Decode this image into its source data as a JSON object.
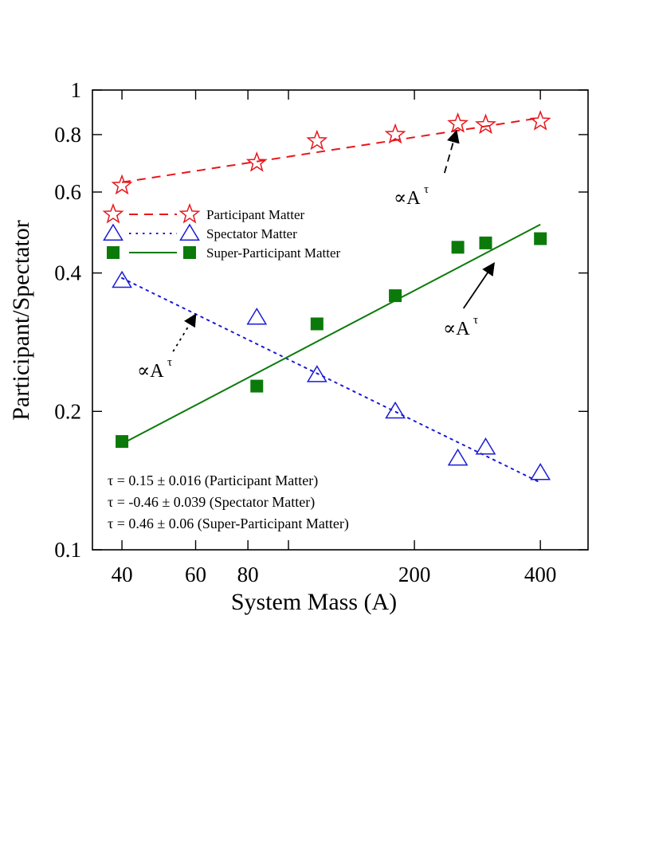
{
  "chart_data": {
    "type": "scatter",
    "xlabel": "System Mass (A)",
    "ylabel": "Participant/Spectator",
    "xscale": "log",
    "yscale": "log",
    "xlim": [
      34,
      520
    ],
    "ylim": [
      0.1,
      1
    ],
    "xticks": [
      40,
      60,
      80,
      200,
      400
    ],
    "xtick_labels": [
      "40",
      "60",
      "80",
      "200",
      "400"
    ],
    "x_minor_ticks": [
      100
    ],
    "yticks": [
      0.1,
      0.2,
      0.4,
      0.6,
      0.8,
      1
    ],
    "ytick_labels": [
      "0.1",
      "0.2",
      "0.4",
      "0.6",
      "0.8",
      "1"
    ],
    "grid": false,
    "legend_position": "upper-left",
    "series": [
      {
        "name": "Participant Matter",
        "marker": "star",
        "line": "dashed",
        "color": "#e8161b",
        "x": [
          40,
          84,
          117,
          180,
          254,
          296,
          400
        ],
        "y": [
          0.62,
          0.695,
          0.775,
          0.8,
          0.845,
          0.84,
          0.855
        ],
        "fit": {
          "x": [
            40,
            400
          ],
          "y": [
            0.63,
            0.87
          ]
        }
      },
      {
        "name": "Spectator Matter",
        "marker": "triangle",
        "line": "dotted",
        "color": "#1b1bd8",
        "x": [
          40,
          84,
          117,
          180,
          254,
          296,
          400
        ],
        "y": [
          0.385,
          0.32,
          0.24,
          0.2,
          0.158,
          0.167,
          0.147
        ],
        "fit": {
          "x": [
            40,
            400
          ],
          "y": [
            0.39,
            0.14
          ]
        }
      },
      {
        "name": "Super-Participant Matter",
        "marker": "square",
        "line": "solid",
        "color": "#0b7a0b",
        "x": [
          40,
          84,
          117,
          180,
          254,
          296,
          400
        ],
        "y": [
          0.172,
          0.227,
          0.31,
          0.357,
          0.455,
          0.465,
          0.475
        ],
        "fit": {
          "x": [
            40,
            400
          ],
          "y": [
            0.17,
            0.51
          ]
        }
      }
    ],
    "annotations": [
      {
        "series": 0,
        "text": "∝A",
        "sup": "τ",
        "text_x": 60,
        "text_y": 0.56,
        "arrow_from": [
          236,
          0.66
        ],
        "arrow_to": [
          252,
          0.815
        ]
      },
      {
        "series": 2,
        "text": "∝A",
        "sup": "τ",
        "text_x": 60,
        "text_y": 0.3,
        "arrow_from": [
          262,
          0.335
        ],
        "arrow_to": [
          310,
          0.42
        ]
      },
      {
        "series": 1,
        "text": "∝A",
        "sup": "τ",
        "text_x": 43,
        "text_y": 0.248,
        "arrow_from": [
          53,
          0.27
        ],
        "arrow_to": [
          60,
          0.325
        ]
      }
    ],
    "notes": [
      "τ = 0.15 ± 0.016 (Participant Matter)",
      "τ = -0.46 ± 0.039 (Spectator Matter)",
      "τ = 0.46 ± 0.06 (Super-Participant Matter)"
    ]
  }
}
